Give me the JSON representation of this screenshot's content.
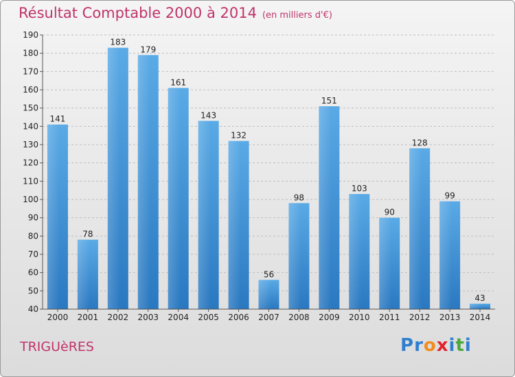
{
  "header": {
    "title": "Résultat Comptable 2000 à 2014",
    "subtitle": "(en milliers d'€)"
  },
  "footer": {
    "commune": "TRIGUèRES",
    "logo_letters": [
      {
        "ch": "P",
        "color": "#2f7fd0"
      },
      {
        "ch": "r",
        "color": "#2f7fd0"
      },
      {
        "ch": "o",
        "color": "#f28c1c"
      },
      {
        "ch": "x",
        "color": "#e2222c"
      },
      {
        "ch": "i",
        "color": "#2f7fd0"
      },
      {
        "ch": "t",
        "color": "#4aa83c"
      },
      {
        "ch": "i",
        "color": "#2f7fd0"
      }
    ]
  },
  "chart_data": {
    "type": "bar",
    "title": "Résultat Comptable 2000 à 2014",
    "subtitle": "(en milliers d'€)",
    "categories": [
      "2000",
      "2001",
      "2002",
      "2003",
      "2004",
      "2005",
      "2006",
      "2007",
      "2008",
      "2009",
      "2010",
      "2011",
      "2012",
      "2013",
      "2014"
    ],
    "values": [
      141,
      78,
      183,
      179,
      161,
      143,
      132,
      56,
      98,
      151,
      103,
      90,
      128,
      99,
      43
    ],
    "ylim": [
      40,
      190
    ],
    "yticks": [
      40,
      50,
      60,
      70,
      80,
      90,
      100,
      110,
      120,
      130,
      140,
      150,
      160,
      170,
      180,
      190
    ],
    "grid": true,
    "bar_color_top": "#5aaae6",
    "bar_color_bottom": "#2a78c0"
  }
}
